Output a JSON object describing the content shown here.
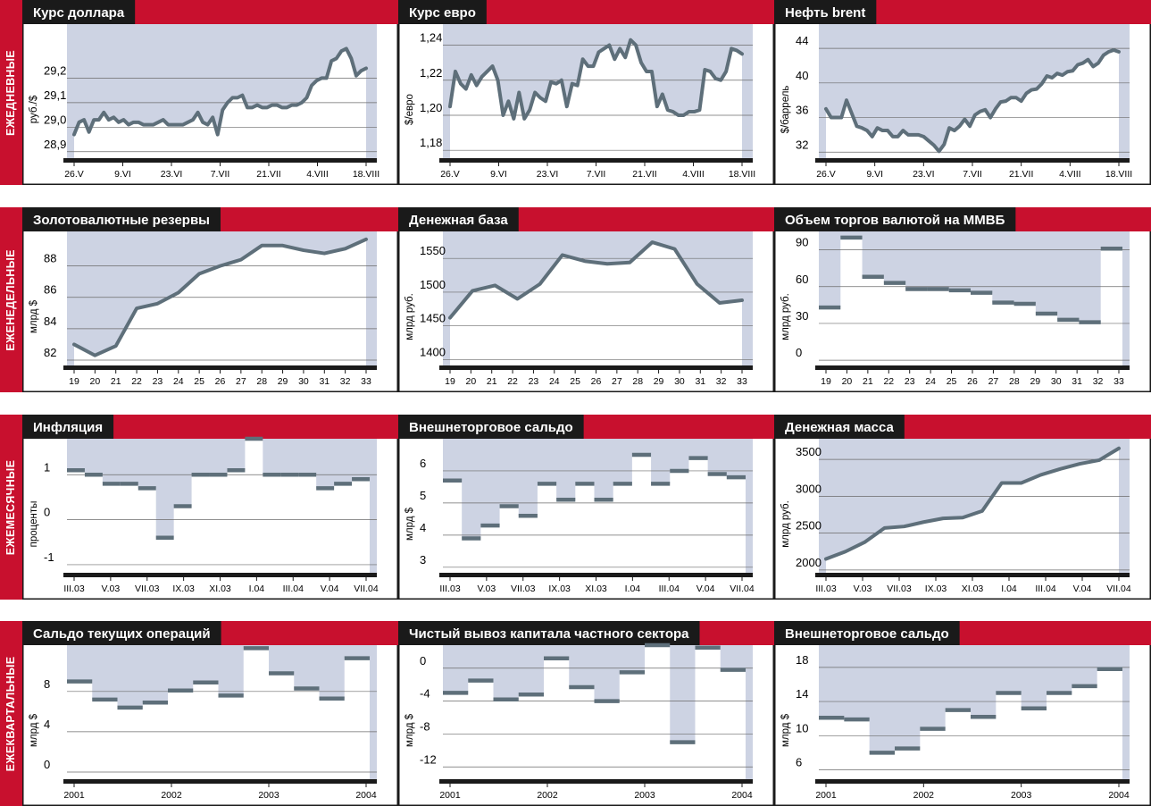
{
  "colors": {
    "red": "#c8102e",
    "plotbg": "#cdd3e3",
    "line": "#5e6f7a",
    "dark": "#1a1a1a"
  },
  "rows": [
    {
      "label": "ЕЖЕДНЕВНЫЕ"
    },
    {
      "label": "ЕЖЕНЕДЕЛЬНЫЕ"
    },
    {
      "label": "ЕЖЕМЕСЯЧНЫЕ"
    },
    {
      "label": "ЕЖЕКВАРТАЛЬНЫЕ"
    }
  ],
  "chart_data": [
    {
      "id": "usd",
      "type": "line",
      "title": "Курс доллара",
      "ylabel": "руб./$",
      "ylim": [
        28.87,
        29.42
      ],
      "yticks": [
        28.9,
        29.0,
        29.1,
        29.2
      ],
      "ytick_labels": [
        "28,9",
        "29,0",
        "29,1",
        "29,2"
      ],
      "xlabels": [
        "26.V",
        "9.VI",
        "23.VI",
        "7.VII",
        "21.VII",
        "4.VIII",
        "18.VIII"
      ],
      "values": [
        28.97,
        29.02,
        29.03,
        28.98,
        29.03,
        29.03,
        29.06,
        29.03,
        29.04,
        29.02,
        29.03,
        29.01,
        29.02,
        29.02,
        29.01,
        29.01,
        29.01,
        29.02,
        29.03,
        29.01,
        29.01,
        29.01,
        29.01,
        29.02,
        29.03,
        29.06,
        29.02,
        29.01,
        29.04,
        28.97,
        29.07,
        29.1,
        29.12,
        29.12,
        29.13,
        29.08,
        29.08,
        29.09,
        29.08,
        29.08,
        29.09,
        29.09,
        29.08,
        29.08,
        29.09,
        29.09,
        29.1,
        29.12,
        29.17,
        29.19,
        29.2,
        29.2,
        29.27,
        29.28,
        29.31,
        29.32,
        29.28,
        29.21,
        29.23,
        29.24
      ]
    },
    {
      "id": "eur",
      "type": "line",
      "title": "Курс евро",
      "ylabel": "$/евро",
      "ylim": [
        1.175,
        1.252
      ],
      "yticks": [
        1.18,
        1.2,
        1.22,
        1.24
      ],
      "ytick_labels": [
        "1,18",
        "1,20",
        "1,22",
        "1,24"
      ],
      "xlabels": [
        "26.V",
        "9.VI",
        "23.VI",
        "7.VII",
        "21.VII",
        "4.VIII",
        "18.VIII"
      ],
      "values": [
        1.205,
        1.225,
        1.218,
        1.215,
        1.223,
        1.217,
        1.222,
        1.225,
        1.228,
        1.22,
        1.2,
        1.208,
        1.198,
        1.213,
        1.198,
        1.203,
        1.213,
        1.21,
        1.208,
        1.219,
        1.218,
        1.22,
        1.205,
        1.218,
        1.217,
        1.232,
        1.228,
        1.228,
        1.236,
        1.238,
        1.24,
        1.232,
        1.238,
        1.233,
        1.243,
        1.24,
        1.23,
        1.225,
        1.225,
        1.205,
        1.212,
        1.203,
        1.202,
        1.2,
        1.2,
        1.202,
        1.202,
        1.203,
        1.226,
        1.225,
        1.221,
        1.22,
        1.225,
        1.238,
        1.237,
        1.235
      ]
    },
    {
      "id": "brent",
      "type": "line",
      "title": "Нефть brent",
      "ylabel": "$/баррель",
      "ylim": [
        31.2,
        46.8
      ],
      "yticks": [
        32,
        36,
        40,
        44
      ],
      "ytick_labels": [
        "32",
        "36",
        "40",
        "44"
      ],
      "xlabels": [
        "26.V",
        "9.VI",
        "23.VI",
        "7.VII",
        "21.VII",
        "4.VIII",
        "18.VIII"
      ],
      "values": [
        37.0,
        36.0,
        36.0,
        36.0,
        38.0,
        36.5,
        35.0,
        34.8,
        34.5,
        33.8,
        34.8,
        34.5,
        34.5,
        33.8,
        33.8,
        34.5,
        34.0,
        34.0,
        34.0,
        33.8,
        33.3,
        32.8,
        32.1,
        32.9,
        34.8,
        34.5,
        35.0,
        35.8,
        35.0,
        36.3,
        36.7,
        36.9,
        36.0,
        37.0,
        37.8,
        37.9,
        38.3,
        38.3,
        37.9,
        38.8,
        39.2,
        39.3,
        39.9,
        40.8,
        40.6,
        41.1,
        40.9,
        41.3,
        41.4,
        42.1,
        42.3,
        42.7,
        41.9,
        42.3,
        43.2,
        43.6,
        43.8,
        43.6
      ]
    },
    {
      "id": "reserves",
      "type": "line",
      "title": "Золотовалютные резервы",
      "ylabel": "млрд $",
      "ylim": [
        81.6,
        90.2
      ],
      "yticks": [
        82,
        84,
        86,
        88
      ],
      "ytick_labels": [
        "82",
        "84",
        "86",
        "88"
      ],
      "xlabels": [
        "19",
        "20",
        "21",
        "22",
        "23",
        "24",
        "25",
        "26",
        "27",
        "28",
        "29",
        "30",
        "31",
        "32",
        "33"
      ],
      "values": [
        83.0,
        82.3,
        82.9,
        85.3,
        85.6,
        86.3,
        87.5,
        88.0,
        88.4,
        89.3,
        89.3,
        89.0,
        88.8,
        89.1,
        89.7
      ]
    },
    {
      "id": "monbase",
      "type": "line",
      "title": "Денежная база",
      "ylabel": "млрд руб.",
      "ylim": [
        1390,
        1590
      ],
      "yticks": [
        1400,
        1450,
        1500,
        1550
      ],
      "ytick_labels": [
        "1400",
        "1450",
        "1500",
        "1550"
      ],
      "xlabels": [
        "19",
        "20",
        "21",
        "22",
        "23",
        "24",
        "25",
        "26",
        "27",
        "28",
        "29",
        "30",
        "31",
        "32",
        "33"
      ],
      "values": [
        1462,
        1502,
        1510,
        1490,
        1512,
        1555,
        1546,
        1542,
        1544,
        1574,
        1564,
        1512,
        1484,
        1488
      ]
    },
    {
      "id": "micex",
      "type": "step",
      "title": "Объем торгов валютой на ММВБ",
      "ylabel": "млрд руб.",
      "ylim": [
        -5,
        105
      ],
      "yticks": [
        0,
        30,
        60,
        90
      ],
      "ytick_labels": [
        "0",
        "30",
        "60",
        "90"
      ],
      "xlabels": [
        "19",
        "20",
        "21",
        "22",
        "23",
        "24",
        "25",
        "26",
        "27",
        "28",
        "29",
        "30",
        "31",
        "32",
        "33"
      ],
      "values": [
        43,
        100,
        68,
        63,
        58,
        58,
        57,
        55,
        47,
        46,
        38,
        33,
        31,
        91
      ]
    },
    {
      "id": "inflation",
      "type": "step",
      "title": "Инфляция",
      "ylabel": "проценты",
      "ylim": [
        -1.2,
        1.8
      ],
      "yticks": [
        -1,
        0,
        1
      ],
      "ytick_labels": [
        "-1",
        "0",
        "1"
      ],
      "xlabels": [
        "III.03",
        "V.03",
        "VII.03",
        "IX.03",
        "XI.03",
        "I.04",
        "III.04",
        "V.04",
        "VII.04"
      ],
      "values": [
        1.1,
        1.0,
        0.8,
        0.8,
        0.7,
        -0.4,
        0.3,
        1.0,
        1.0,
        1.1,
        1.8,
        1.0,
        1.0,
        1.0,
        0.7,
        0.8,
        0.9
      ]
    },
    {
      "id": "trade_m",
      "type": "step",
      "title": "Внешнеторговое сальдо",
      "ylabel": "млрд $",
      "ylim": [
        2.8,
        7.0
      ],
      "yticks": [
        3,
        4,
        5,
        6
      ],
      "ytick_labels": [
        "3",
        "4",
        "5",
        "6"
      ],
      "xlabels": [
        "III.03",
        "V.03",
        "VII.03",
        "IX.03",
        "XI.03",
        "I.04",
        "III.04",
        "V.04",
        "VII.04"
      ],
      "values": [
        5.7,
        3.9,
        4.3,
        4.9,
        4.6,
        5.6,
        5.1,
        5.6,
        5.1,
        5.6,
        6.5,
        5.6,
        6.0,
        6.4,
        5.9,
        5.8
      ]
    },
    {
      "id": "m2",
      "type": "line",
      "title": "Денежная масса",
      "ylabel": "млрд руб.",
      "ylim": [
        1950,
        3780
      ],
      "yticks": [
        2000,
        2500,
        3000,
        3500
      ],
      "ytick_labels": [
        "2000",
        "2500",
        "3000",
        "3500"
      ],
      "xlabels": [
        "III.03",
        "V.03",
        "VII.03",
        "IX.03",
        "XI.03",
        "I.04",
        "III.04",
        "V.04",
        "VII.04"
      ],
      "values": [
        2150,
        2250,
        2380,
        2570,
        2590,
        2650,
        2700,
        2710,
        2800,
        3180,
        3180,
        3290,
        3370,
        3440,
        3490,
        3650
      ]
    },
    {
      "id": "current",
      "type": "step",
      "title": "Сальдо текущих операций",
      "ylabel": "млрд $",
      "ylim": [
        -0.8,
        12.6
      ],
      "yticks": [
        0,
        4,
        8
      ],
      "ytick_labels": [
        "0",
        "4",
        "8"
      ],
      "xlabels": [
        "2001",
        "2002",
        "2003",
        "2004"
      ],
      "values": [
        9.0,
        7.2,
        6.4,
        6.9,
        8.1,
        8.9,
        7.6,
        12.3,
        9.8,
        8.3,
        7.3,
        11.3
      ]
    },
    {
      "id": "capital",
      "type": "step",
      "title": "Чистый вывоз капитала частного сектора",
      "ylabel": "млрд $",
      "ylim": [
        -13.6,
        2.8
      ],
      "yticks": [
        -12,
        -8,
        -4,
        0
      ],
      "ytick_labels": [
        "-12",
        "-8",
        "-4",
        "0"
      ],
      "xlabels": [
        "2001",
        "2002",
        "2003",
        "2004"
      ],
      "values": [
        -3.0,
        -1.5,
        -3.8,
        -3.2,
        1.2,
        -2.3,
        -4.0,
        -0.5,
        2.8,
        -9.0,
        2.5,
        -0.2
      ]
    },
    {
      "id": "trade_q",
      "type": "step",
      "title": "Внешнеторговое сальдо",
      "ylabel": "млрд $",
      "ylim": [
        4.8,
        20.6
      ],
      "yticks": [
        6,
        10,
        14,
        18
      ],
      "ytick_labels": [
        "6",
        "10",
        "14",
        "18"
      ],
      "xlabels": [
        "2001",
        "2002",
        "2003",
        "2004"
      ],
      "values": [
        12.1,
        11.9,
        8.0,
        8.5,
        10.8,
        13.0,
        12.2,
        15.0,
        13.2,
        15.0,
        15.8,
        17.8
      ]
    }
  ]
}
